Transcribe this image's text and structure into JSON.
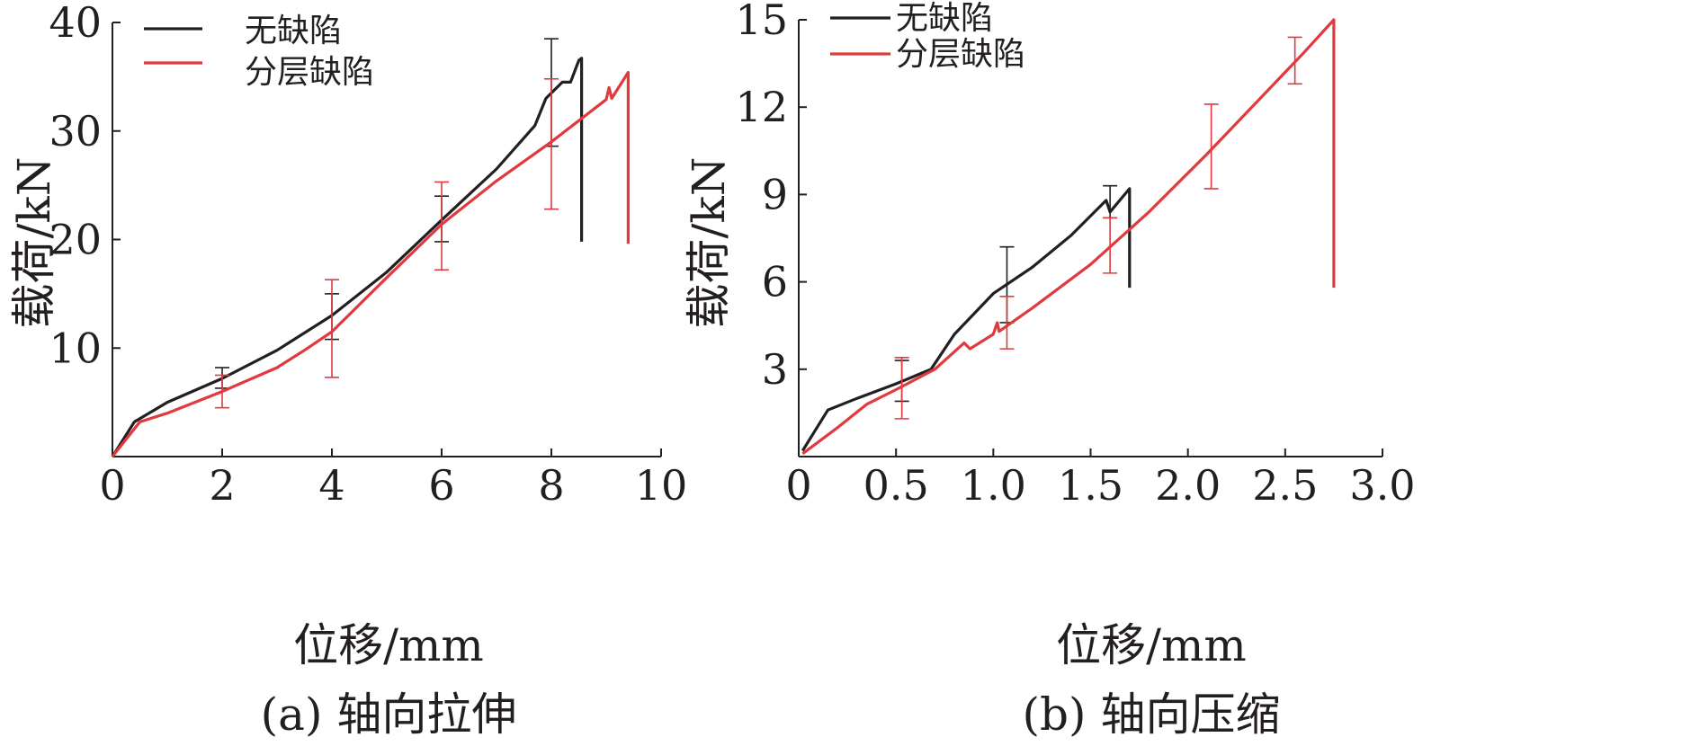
{
  "chart_data": [
    {
      "type": "line",
      "caption": "(a) 轴向拉伸",
      "xlabel": "位移/mm",
      "ylabel": "载荷/kN",
      "xlim": [
        0,
        10
      ],
      "ylim": [
        0,
        40
      ],
      "xticks": [
        "0",
        "2",
        "4",
        "6",
        "8",
        "10"
      ],
      "yticks": [
        "10",
        "20",
        "30",
        "40"
      ],
      "xtick_values": [
        0,
        2,
        4,
        6,
        8,
        10
      ],
      "ytick_values": [
        10,
        20,
        30,
        40
      ],
      "grid": false,
      "legend_position": "top-left",
      "series": [
        {
          "name": "无缺陷",
          "color": "#231f20",
          "points": [
            [
              0,
              0
            ],
            [
              0.4,
              3.2
            ],
            [
              1,
              5
            ],
            [
              2,
              7.2
            ],
            [
              3,
              9.8
            ],
            [
              4,
              13
            ],
            [
              5,
              17
            ],
            [
              6,
              21.8
            ],
            [
              7,
              26.5
            ],
            [
              7.7,
              30.5
            ],
            [
              7.9,
              33
            ],
            [
              8.2,
              34.5
            ],
            [
              8.35,
              34.5
            ],
            [
              8.5,
              36.5
            ],
            [
              8.55,
              36.7
            ],
            [
              8.55,
              19.8
            ]
          ],
          "error_bars": [
            {
              "x": 2,
              "low": 6.3,
              "high": 8.2
            },
            {
              "x": 4,
              "low": 10.8,
              "high": 15
            },
            {
              "x": 6,
              "low": 19.8,
              "high": 24
            },
            {
              "x": 8,
              "low": 28.6,
              "high": 38.5
            }
          ]
        },
        {
          "name": "分层缺陷",
          "color": "#e03a3e",
          "points": [
            [
              0,
              0
            ],
            [
              0.5,
              3.2
            ],
            [
              1,
              4
            ],
            [
              2,
              6
            ],
            [
              3,
              8.2
            ],
            [
              3.5,
              9.8
            ],
            [
              4,
              11.5
            ],
            [
              5,
              16.5
            ],
            [
              6,
              21.4
            ],
            [
              7,
              25.4
            ],
            [
              8,
              29
            ],
            [
              9,
              32.9
            ],
            [
              9.05,
              34
            ],
            [
              9.1,
              33
            ],
            [
              9.4,
              35.4
            ],
            [
              9.4,
              19.6
            ]
          ],
          "error_bars": [
            {
              "x": 2,
              "low": 4.5,
              "high": 7.5
            },
            {
              "x": 4,
              "low": 7.3,
              "high": 16.3
            },
            {
              "x": 6,
              "low": 17.2,
              "high": 25.3
            },
            {
              "x": 8,
              "low": 22.8,
              "high": 34.8
            }
          ]
        }
      ]
    },
    {
      "type": "line",
      "caption": "(b) 轴向压缩",
      "xlabel": "位移/mm",
      "ylabel": "载荷/kN",
      "xlim": [
        0,
        3.0
      ],
      "ylim": [
        0,
        15
      ],
      "xticks": [
        "0",
        "0.5",
        "1.0",
        "1.5",
        "2.0",
        "2.5",
        "3.0"
      ],
      "yticks": [
        "3",
        "6",
        "9",
        "12",
        "15"
      ],
      "xtick_values": [
        0,
        0.5,
        1.0,
        1.5,
        2.0,
        2.5,
        3.0
      ],
      "ytick_values": [
        3,
        6,
        9,
        12,
        15
      ],
      "grid": false,
      "legend_position": "top-left",
      "series": [
        {
          "name": "无缺陷",
          "color": "#231f20",
          "points": [
            [
              0.02,
              0.2
            ],
            [
              0.15,
              1.6
            ],
            [
              0.3,
              2
            ],
            [
              0.5,
              2.5
            ],
            [
              0.68,
              3
            ],
            [
              0.8,
              4.2
            ],
            [
              1,
              5.6
            ],
            [
              1.2,
              6.5
            ],
            [
              1.4,
              7.6
            ],
            [
              1.58,
              8.8
            ],
            [
              1.6,
              8.4
            ],
            [
              1.7,
              9.2
            ],
            [
              1.7,
              5.8
            ]
          ],
          "error_bars": [
            {
              "x": 0.53,
              "low": 1.9,
              "high": 3.3
            },
            {
              "x": 1.07,
              "low": 4.6,
              "high": 7.2
            },
            {
              "x": 1.6,
              "low": 8.2,
              "high": 9.3
            }
          ]
        },
        {
          "name": "分层缺陷",
          "color": "#e03a3e",
          "points": [
            [
              0.02,
              0.1
            ],
            [
              0.2,
              1
            ],
            [
              0.35,
              1.8
            ],
            [
              0.5,
              2.3
            ],
            [
              0.7,
              3
            ],
            [
              0.85,
              3.9
            ],
            [
              0.88,
              3.7
            ],
            [
              1,
              4.2
            ],
            [
              1.02,
              4.6
            ],
            [
              1.03,
              4.3
            ],
            [
              1.2,
              5.1
            ],
            [
              1.5,
              6.6
            ],
            [
              1.8,
              8.4
            ],
            [
              2.1,
              10.4
            ],
            [
              2.4,
              12.5
            ],
            [
              2.6,
              13.9
            ],
            [
              2.75,
              15
            ],
            [
              2.75,
              5.8
            ]
          ],
          "error_bars": [
            {
              "x": 0.53,
              "low": 1.3,
              "high": 3.4
            },
            {
              "x": 1.07,
              "low": 3.7,
              "high": 5.5
            },
            {
              "x": 1.6,
              "low": 6.3,
              "high": 8.2
            },
            {
              "x": 2.12,
              "low": 9.2,
              "high": 12.1
            },
            {
              "x": 2.55,
              "low": 12.8,
              "high": 14.4
            }
          ]
        }
      ]
    }
  ]
}
